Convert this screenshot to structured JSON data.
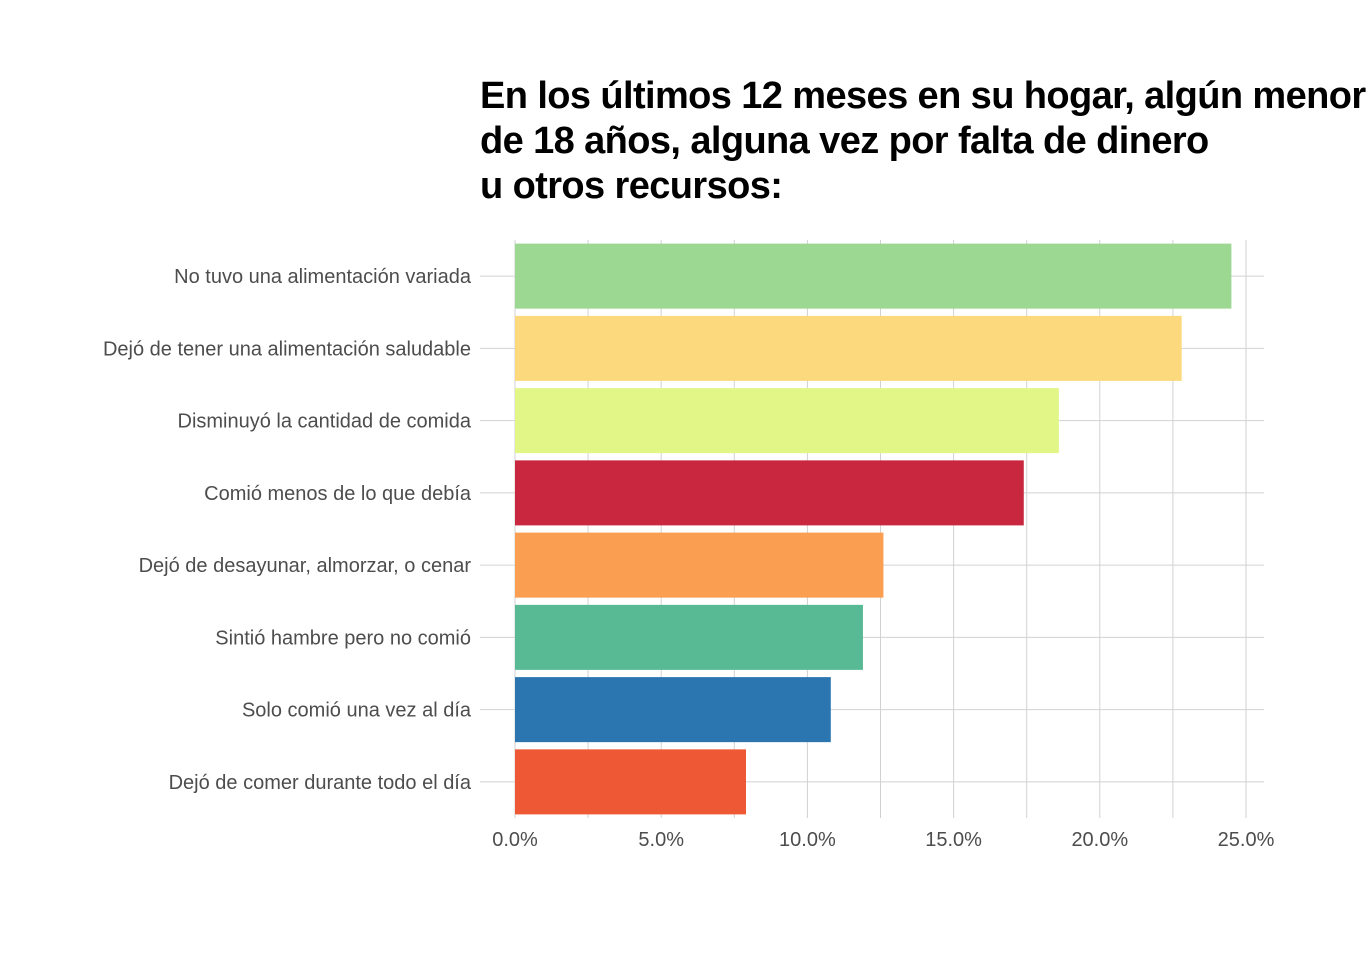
{
  "chart_data": {
    "type": "bar",
    "orientation": "horizontal",
    "title_lines": [
      "En los últimos 12 meses en su hogar, algún menor",
      "de 18 años, alguna vez por falta de dinero",
      "u otros recursos:"
    ],
    "xlabel": "",
    "ylabel": "",
    "categories": [
      "No tuvo una alimentación variada",
      "Dejó de tener una alimentación saludable",
      "Disminuyó la cantidad de comida",
      "Comió menos de lo que debía",
      "Dejó de desayunar, almorzar, o cenar",
      "Sintió hambre pero no comió",
      "Solo comió una vez al día",
      "Dejó de comer durante todo el día"
    ],
    "values": [
      24.5,
      22.8,
      18.6,
      17.4,
      12.6,
      11.9,
      10.8,
      7.9
    ],
    "colors": [
      "#9dd893",
      "#fcd97c",
      "#e2f688",
      "#c9273f",
      "#fa9e52",
      "#58ba95",
      "#2b76b0",
      "#ef5834"
    ],
    "xlim": [
      0,
      25.7
    ],
    "x_ticks": [
      0,
      5,
      10,
      15,
      20,
      25
    ],
    "x_tick_labels": [
      "0.0%",
      "5.0%",
      "10.0%",
      "15.0%",
      "20.0%",
      "25.0%"
    ],
    "grid": true,
    "legend": "none"
  }
}
